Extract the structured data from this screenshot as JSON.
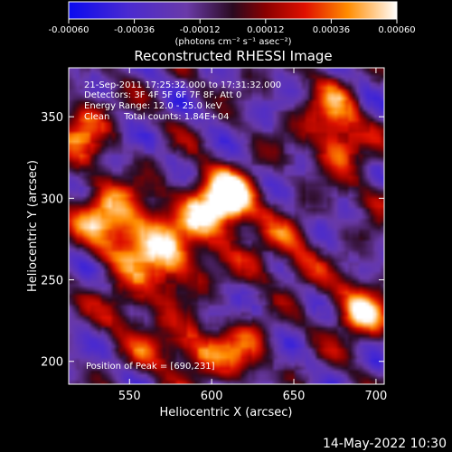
{
  "chart_data": {
    "type": "heatmap",
    "title": "Reconstructed RHESSI Image",
    "xlabel": "Heliocentric X (arcsec)",
    "ylabel": "Heliocentric Y (arcsec)",
    "xlim": [
      513,
      705
    ],
    "ylim": [
      186,
      380
    ],
    "x_ticks": [
      550,
      600,
      650,
      700
    ],
    "y_ticks": [
      200,
      250,
      300,
      350
    ],
    "colorbar": {
      "range": [
        -0.0006,
        0.0006
      ],
      "tick_values": [
        -0.0006,
        -0.00036,
        -0.00012,
        0.00012,
        0.00036,
        0.0006
      ],
      "tick_labels": [
        "-0.00060",
        "-0.00036",
        "-0.00012",
        "0.00012",
        "0.00036",
        "0.00060"
      ],
      "units": "(photons cm⁻² s⁻¹ asec⁻²)",
      "stops": [
        {
          "t": 0.0,
          "color": "#0a0af0"
        },
        {
          "t": 0.18,
          "color": "#4a2ad0"
        },
        {
          "t": 0.36,
          "color": "#6a3aa8"
        },
        {
          "t": 0.5,
          "color": "#2a0a20"
        },
        {
          "t": 0.6,
          "color": "#8a0000"
        },
        {
          "t": 0.72,
          "color": "#e01000"
        },
        {
          "t": 0.85,
          "color": "#ff8c00"
        },
        {
          "t": 1.0,
          "color": "#ffffff"
        }
      ]
    },
    "annotations": [
      "21-Sep-2011 17:25:32.000 to 17:31:32.000",
      "Detectors: 3F 4F 5F 6F 7F 8F, Att 0",
      "Energy Range: 12.0 - 25.0 keV",
      "Clean     Total counts: 1.84E+04"
    ],
    "peak_label": "Position of Peak = [690,231]",
    "peak": {
      "x": 690,
      "y": 231
    },
    "sources": [
      {
        "x": 600,
        "y": 293,
        "amp": 1.0,
        "sigma": 14
      },
      {
        "x": 612,
        "y": 300,
        "amp": 0.9,
        "sigma": 12
      },
      {
        "x": 535,
        "y": 289,
        "amp": 0.9,
        "sigma": 14
      },
      {
        "x": 560,
        "y": 275,
        "amp": 0.8,
        "sigma": 16
      },
      {
        "x": 575,
        "y": 258,
        "amp": 0.7,
        "sigma": 14
      },
      {
        "x": 545,
        "y": 233,
        "amp": 0.6,
        "sigma": 10
      },
      {
        "x": 690,
        "y": 231,
        "amp": 1.05,
        "sigma": 12
      },
      {
        "x": 678,
        "y": 332,
        "amp": 0.85,
        "sigma": 11
      },
      {
        "x": 672,
        "y": 355,
        "amp": 0.7,
        "sigma": 12
      },
      {
        "x": 645,
        "y": 277,
        "amp": 0.45,
        "sigma": 10
      },
      {
        "x": 655,
        "y": 258,
        "amp": 0.4,
        "sigma": 10
      },
      {
        "x": 588,
        "y": 205,
        "amp": 0.75,
        "sigma": 12
      },
      {
        "x": 618,
        "y": 207,
        "amp": 0.75,
        "sigma": 11
      },
      {
        "x": 563,
        "y": 211,
        "amp": 0.55,
        "sigma": 10
      },
      {
        "x": 520,
        "y": 336,
        "amp": 0.55,
        "sigma": 12
      },
      {
        "x": 523,
        "y": 350,
        "amp": 0.45,
        "sigma": 10
      },
      {
        "x": 628,
        "y": 260,
        "amp": 0.4,
        "sigma": 9
      },
      {
        "x": 700,
        "y": 300,
        "amp": 0.4,
        "sigma": 9
      }
    ]
  },
  "footer": {
    "timestamp": "14-May-2022 10:30"
  }
}
